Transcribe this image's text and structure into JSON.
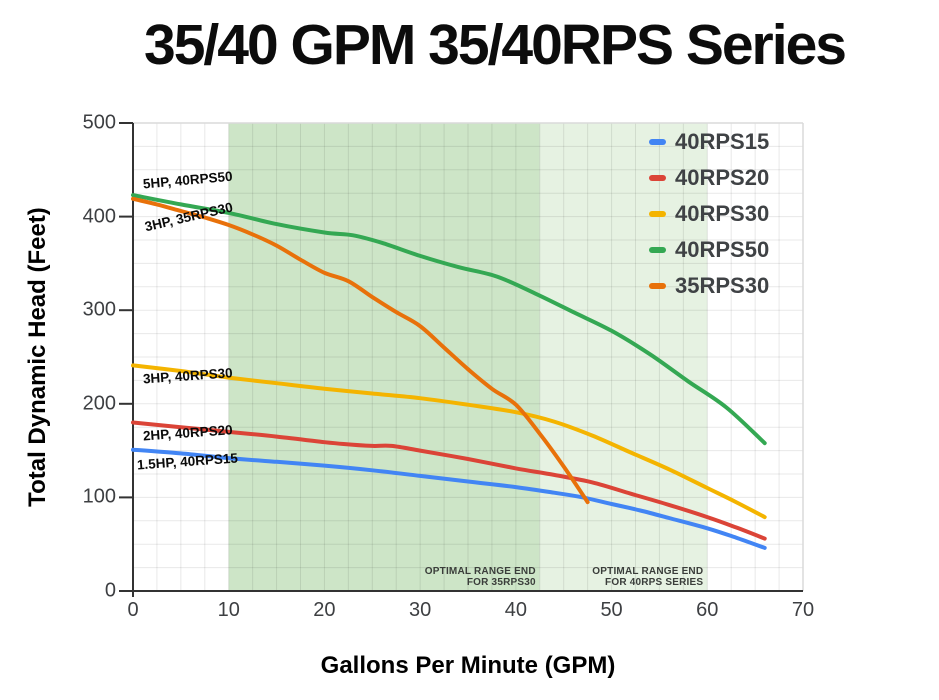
{
  "title": "35/40 GPM 35/40RPS Series",
  "chart_data": {
    "type": "line",
    "title": "35/40 GPM 35/40RPS Series",
    "xlabel": "Gallons Per Minute (GPM)",
    "ylabel": "Total Dynamic Head (Feet)",
    "xlim": [
      0,
      70
    ],
    "ylim": [
      0,
      500
    ],
    "x_ticks": [
      0,
      10,
      20,
      30,
      40,
      50,
      60,
      70
    ],
    "y_ticks": [
      0,
      100,
      200,
      300,
      400,
      500
    ],
    "grid": {
      "minor_x_step": 2.5,
      "minor_y_step": 25,
      "visible": true
    },
    "legend_position": "top-right-inside",
    "series": [
      {
        "name": "40RPS15",
        "color": "#4285f4",
        "points": [
          [
            0,
            151
          ],
          [
            5,
            147
          ],
          [
            10,
            142
          ],
          [
            15,
            138
          ],
          [
            20,
            134
          ],
          [
            25,
            129
          ],
          [
            30,
            123
          ],
          [
            35,
            117
          ],
          [
            40,
            111
          ],
          [
            44,
            105
          ],
          [
            47,
            100
          ],
          [
            50,
            93
          ],
          [
            53,
            86
          ],
          [
            56,
            78
          ],
          [
            60,
            67
          ],
          [
            63,
            57
          ],
          [
            66,
            46
          ]
        ]
      },
      {
        "name": "40RPS20",
        "color": "#db4437",
        "points": [
          [
            0,
            180
          ],
          [
            5,
            175
          ],
          [
            10,
            170
          ],
          [
            15,
            165
          ],
          [
            20,
            159
          ],
          [
            22,
            157
          ],
          [
            25,
            155
          ],
          [
            27,
            155
          ],
          [
            30,
            150
          ],
          [
            35,
            141
          ],
          [
            40,
            131
          ],
          [
            44,
            124
          ],
          [
            48,
            116
          ],
          [
            52,
            104
          ],
          [
            56,
            92
          ],
          [
            60,
            79
          ],
          [
            63,
            68
          ],
          [
            66,
            56
          ]
        ]
      },
      {
        "name": "40RPS30",
        "color": "#f4b400",
        "points": [
          [
            0,
            241
          ],
          [
            5,
            235
          ],
          [
            10,
            228
          ],
          [
            15,
            222
          ],
          [
            20,
            216
          ],
          [
            25,
            211
          ],
          [
            30,
            206
          ],
          [
            35,
            199
          ],
          [
            40,
            191
          ],
          [
            44,
            181
          ],
          [
            48,
            166
          ],
          [
            52,
            148
          ],
          [
            56,
            130
          ],
          [
            60,
            110
          ],
          [
            63,
            95
          ],
          [
            66,
            79
          ]
        ]
      },
      {
        "name": "40RPS50",
        "color": "#34a853",
        "points": [
          [
            0,
            423
          ],
          [
            5,
            413
          ],
          [
            10,
            404
          ],
          [
            15,
            392
          ],
          [
            20,
            383
          ],
          [
            23,
            380
          ],
          [
            26,
            372
          ],
          [
            30,
            358
          ],
          [
            34,
            346
          ],
          [
            38,
            336
          ],
          [
            42,
            318
          ],
          [
            46,
            298
          ],
          [
            50,
            278
          ],
          [
            54,
            253
          ],
          [
            58,
            224
          ],
          [
            62,
            196
          ],
          [
            66,
            158
          ]
        ]
      },
      {
        "name": "35RPS30",
        "color": "#e8710a",
        "points": [
          [
            0,
            419
          ],
          [
            2.5,
            413
          ],
          [
            5,
            406
          ],
          [
            7.5,
            399
          ],
          [
            10,
            391
          ],
          [
            12.5,
            381
          ],
          [
            15,
            369
          ],
          [
            17.5,
            354
          ],
          [
            20,
            340
          ],
          [
            22.5,
            331
          ],
          [
            25,
            314
          ],
          [
            27.5,
            298
          ],
          [
            30,
            283
          ],
          [
            32.5,
            260
          ],
          [
            35,
            237
          ],
          [
            37.5,
            216
          ],
          [
            40,
            199
          ],
          [
            42.5,
            168
          ],
          [
            45,
            133
          ],
          [
            47.5,
            95
          ]
        ]
      }
    ],
    "regions": [
      {
        "name": "optimal-range-35rps30",
        "x0": 10,
        "x1": 42.5,
        "color": "#cde5c7",
        "label_line1": "OPTIMAL RANGE END",
        "label_line2": "FOR 35RPS30"
      },
      {
        "name": "optimal-range-40rps-series",
        "x0": 42.5,
        "x1": 60,
        "color": "#e6f2e2",
        "label_line1": "OPTIMAL RANGE END",
        "label_line2": "FOR 40RPS SERIES"
      }
    ],
    "annotations": [
      {
        "text": "5HP, 40RPS50",
        "x": 1.0,
        "y": 435,
        "rotate": -5
      },
      {
        "text": "3HP, 35RPS30",
        "x": 1.25,
        "y": 389,
        "rotate": -13
      },
      {
        "text": "3HP, 40RPS30",
        "x": 1.0,
        "y": 227,
        "rotate": -4
      },
      {
        "text": "2HP, 40RPS20",
        "x": 1.0,
        "y": 166,
        "rotate": -4
      },
      {
        "text": "1.5HP, 40RPS15",
        "x": 0.4,
        "y": 135,
        "rotate": -4
      }
    ]
  },
  "style": {
    "axis_color": "#333333",
    "frame_color": "#dadada",
    "grid_color": "rgba(0,0,0,0.09)",
    "tick_label_color": "#3d3f42",
    "background": "#ffffff"
  }
}
